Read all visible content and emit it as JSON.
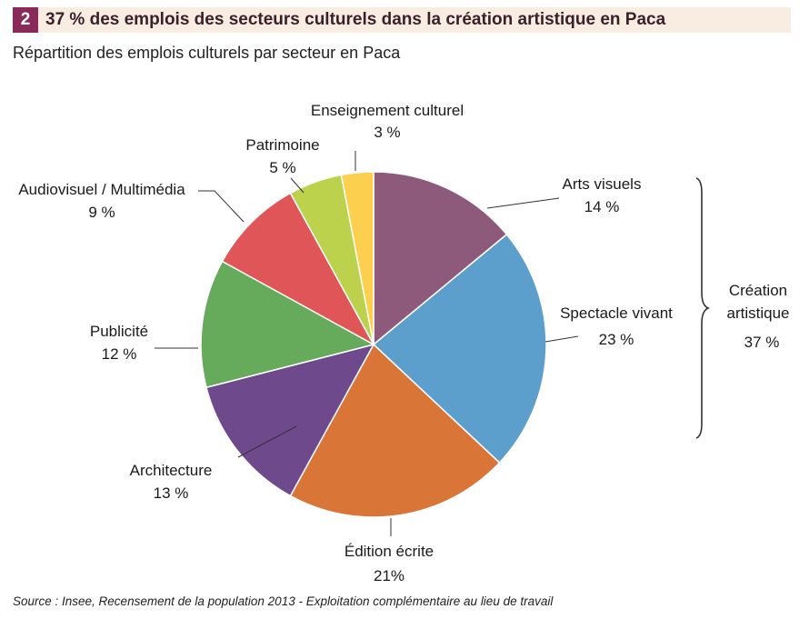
{
  "header": {
    "number": "2",
    "title": "37 % des emplois des secteurs culturels dans la création artistique en Paca"
  },
  "subtitle": "Répartition des emplois culturels par secteur en Paca",
  "source": "Source : Insee, Recensement de la population 2013 - Exploitation complémentaire au lieu de travail",
  "chart_data": {
    "type": "pie",
    "slices": [
      {
        "label": "Arts visuels",
        "value_label": "14 %",
        "value": 14,
        "color": "#8e5a7c"
      },
      {
        "label": "Spectacle vivant",
        "value_label": "23 %",
        "value": 23,
        "color": "#5d9fcc"
      },
      {
        "label": "Édition écrite",
        "value_label": "21%",
        "value": 21,
        "color": "#d97537"
      },
      {
        "label": "Architecture",
        "value_label": "13 %",
        "value": 13,
        "color": "#6e4a8d"
      },
      {
        "label": "Publicité",
        "value_label": "12 %",
        "value": 12,
        "color": "#66aa5c"
      },
      {
        "label": "Audiovisuel / Multimédia",
        "value_label": "9 %",
        "value": 9,
        "color": "#df5558"
      },
      {
        "label": "Patrimoine",
        "value_label": "5 %",
        "value": 5,
        "color": "#bcd24d"
      },
      {
        "label": "Enseignement culturel",
        "value_label": "3 %",
        "value": 3,
        "color": "#fcd04e"
      }
    ],
    "group": {
      "label_line1": "Création",
      "label_line2": "artistique",
      "value_label": "37 %",
      "members": [
        "Arts visuels",
        "Spectacle vivant"
      ]
    }
  }
}
